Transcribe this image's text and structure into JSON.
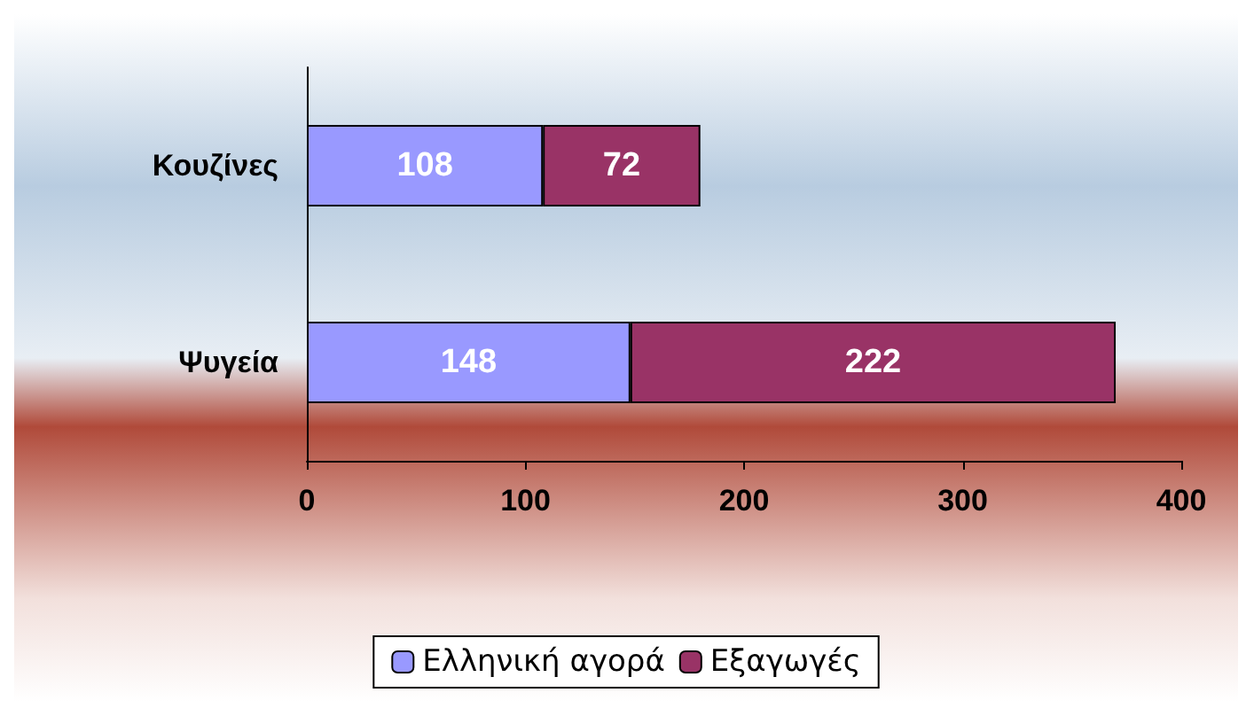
{
  "chart_data": {
    "type": "bar",
    "orientation": "horizontal",
    "stacked": true,
    "categories": [
      "Κουζίνες",
      "Ψυγεία"
    ],
    "series": [
      {
        "name": "Ελληνική αγορά",
        "color": "#9999ff",
        "values": [
          108,
          148
        ]
      },
      {
        "name": "Εξαγωγές",
        "color": "#993366",
        "values": [
          72,
          222
        ]
      }
    ],
    "xlim": [
      0,
      400
    ],
    "xticks": [
      0,
      100,
      200,
      300,
      400
    ],
    "data_labels": true,
    "grid": false,
    "legend": "bottom"
  }
}
